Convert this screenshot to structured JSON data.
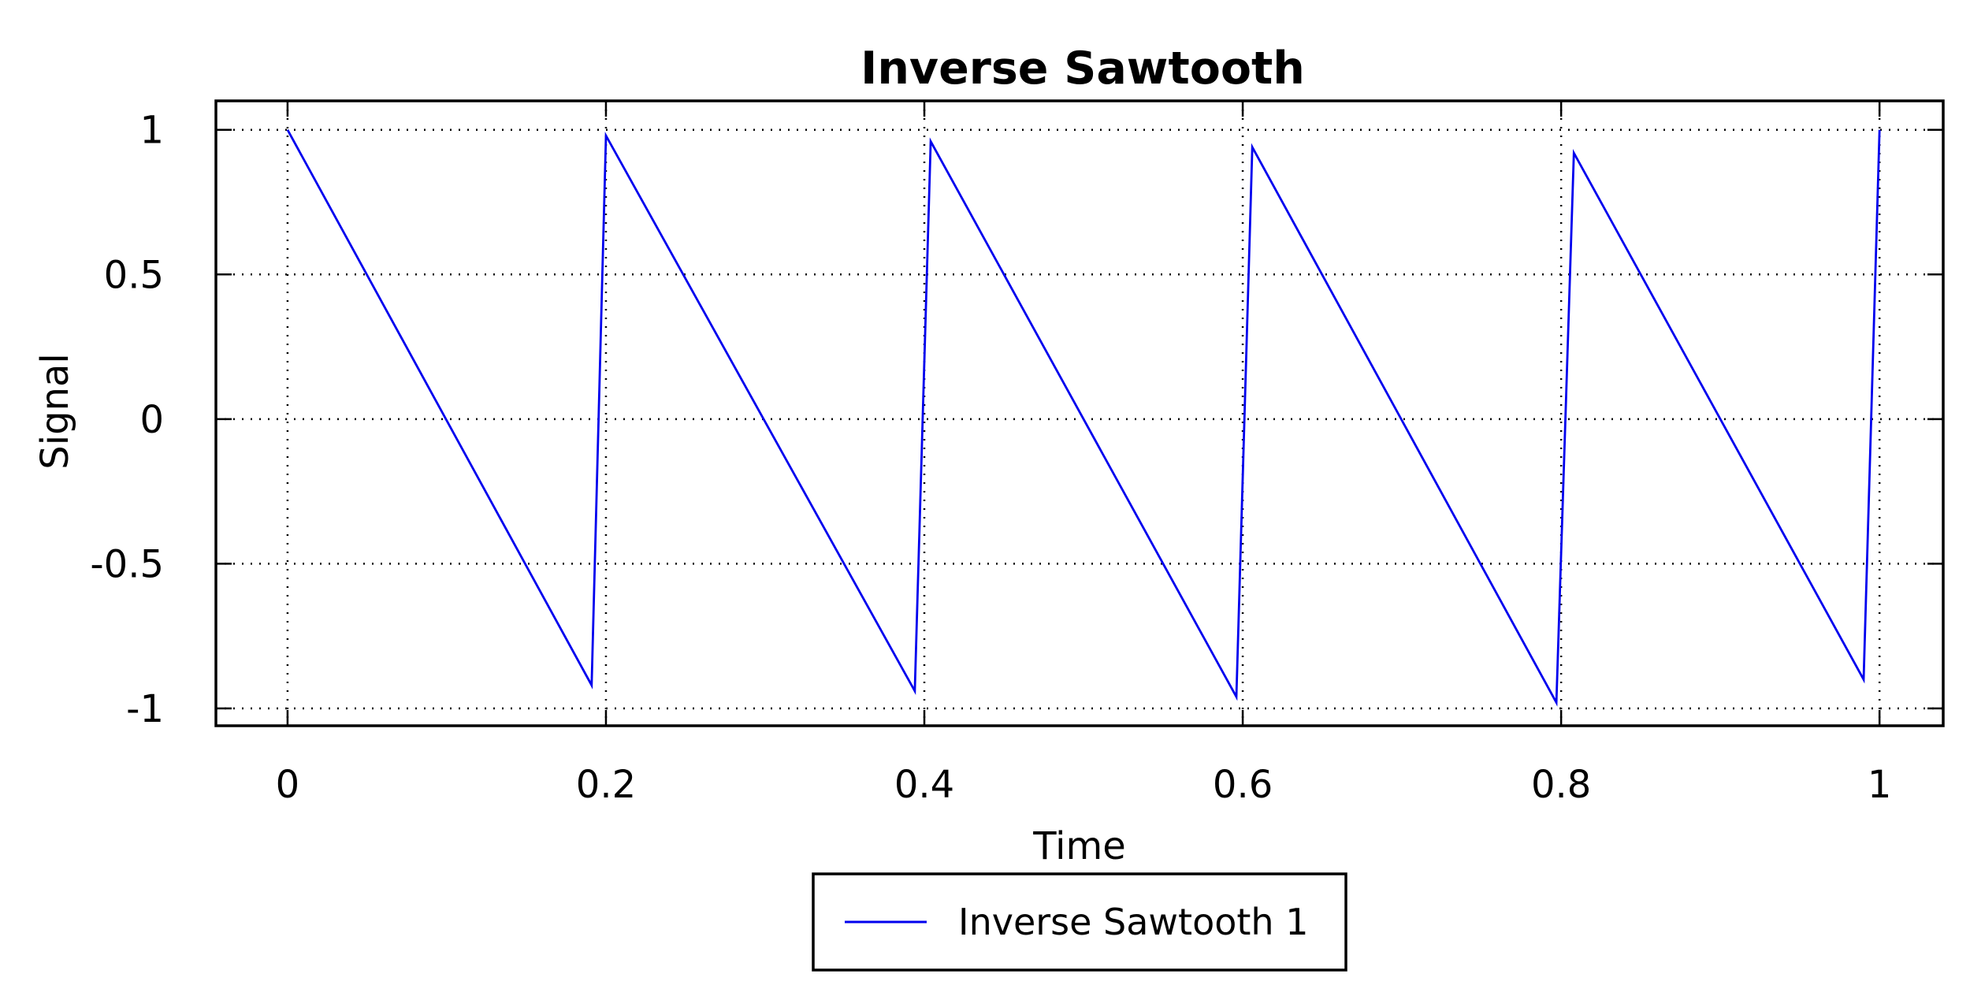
{
  "chart_data": {
    "type": "line",
    "title": "Inverse Sawtooth",
    "xlabel": "Time",
    "ylabel": "Signal",
    "xlim": [
      -0.045,
      1.04
    ],
    "ylim": [
      -1.06,
      1.1
    ],
    "x_ticks": [
      0,
      0.2,
      0.4,
      0.6,
      0.8,
      1
    ],
    "x_tick_labels": [
      "0",
      "0.2",
      "0.4",
      "0.6",
      "0.8",
      "1"
    ],
    "y_ticks": [
      1,
      0.5,
      0,
      -0.5,
      -1
    ],
    "y_tick_labels": [
      "1",
      "0.5",
      "0",
      "-0.5",
      "-1"
    ],
    "grid": true,
    "legend": {
      "placement": "bottom-center, below axes",
      "entries": [
        "Inverse Sawtooth 1"
      ]
    },
    "colors": {
      "series": "#0000ee",
      "frame": "#000000"
    },
    "series": [
      {
        "name": "Inverse Sawtooth 1",
        "color": "#0000ee",
        "x": [
          0,
          0.191,
          0.2,
          0.394,
          0.404,
          0.596,
          0.606,
          0.797,
          0.808,
          0.99,
          1.0
        ],
        "y": [
          1,
          -0.92,
          0.98,
          -0.94,
          0.96,
          -0.96,
          0.94,
          -0.98,
          0.92,
          -0.9,
          1
        ]
      }
    ]
  }
}
